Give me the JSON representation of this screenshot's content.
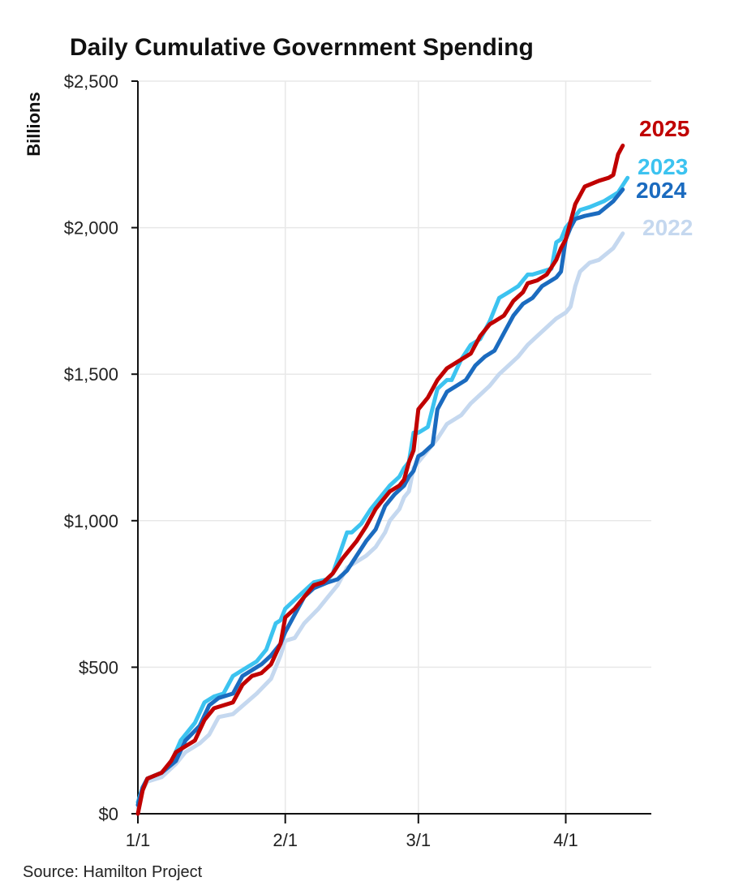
{
  "title": "Daily Cumulative Government Spending",
  "source": "Source: Hamilton Project",
  "chart_data": {
    "type": "line",
    "title": "Daily Cumulative Government Spending",
    "xlabel": "",
    "ylabel": "Billions",
    "xlim": [
      0,
      108
    ],
    "ylim": [
      0,
      2500
    ],
    "x_ticks": [
      {
        "value": 0,
        "label": "1/1"
      },
      {
        "value": 31,
        "label": "2/1"
      },
      {
        "value": 59,
        "label": "3/1"
      },
      {
        "value": 90,
        "label": "4/1"
      }
    ],
    "y_ticks": [
      {
        "value": 0,
        "label": "$0"
      },
      {
        "value": 500,
        "label": "$500"
      },
      {
        "value": 1000,
        "label": "$1,000"
      },
      {
        "value": 1500,
        "label": "$1,500"
      },
      {
        "value": 2000,
        "label": "$2,000"
      },
      {
        "value": 2500,
        "label": "$2,500"
      }
    ],
    "grid": true,
    "series": [
      {
        "name": "2022",
        "color": "#c5d8ef",
        "x": [
          0,
          1,
          2,
          5,
          8,
          10,
          13,
          15,
          17,
          20,
          25,
          28,
          29,
          30,
          31,
          33,
          35,
          38,
          40,
          42,
          44,
          45,
          48,
          50,
          52,
          53,
          55,
          56,
          57,
          58,
          59,
          60,
          63,
          65,
          68,
          70,
          72,
          74,
          76,
          78,
          80,
          82,
          84,
          86,
          88,
          89,
          90,
          91,
          92,
          93,
          95,
          97,
          100,
          102
        ],
        "y": [
          20,
          80,
          110,
          125,
          170,
          210,
          240,
          270,
          330,
          340,
          410,
          460,
          500,
          540,
          590,
          600,
          650,
          700,
          740,
          780,
          840,
          850,
          880,
          910,
          960,
          1000,
          1040,
          1080,
          1100,
          1180,
          1200,
          1220,
          1280,
          1330,
          1360,
          1400,
          1430,
          1460,
          1500,
          1530,
          1560,
          1600,
          1630,
          1660,
          1690,
          1700,
          1710,
          1730,
          1800,
          1850,
          1880,
          1890,
          1930,
          1980
        ]
      },
      {
        "name": "2023",
        "color": "#3cc3f0",
        "x": [
          0,
          1,
          2,
          5,
          7,
          9,
          12,
          14,
          16,
          18,
          20,
          23,
          25,
          27,
          29,
          30,
          31,
          33,
          35,
          37,
          40,
          41,
          44,
          45,
          47,
          49,
          51,
          53,
          55,
          56,
          57,
          58,
          59,
          61,
          63,
          65,
          66,
          68,
          70,
          72,
          74,
          76,
          78,
          80,
          82,
          83,
          85,
          87,
          88,
          89,
          90,
          91,
          93,
          95,
          98,
          101,
          103
        ],
        "y": [
          40,
          90,
          120,
          140,
          175,
          250,
          310,
          380,
          400,
          410,
          470,
          500,
          520,
          560,
          650,
          660,
          700,
          730,
          760,
          790,
          800,
          820,
          960,
          960,
          990,
          1040,
          1080,
          1120,
          1150,
          1180,
          1200,
          1300,
          1300,
          1320,
          1450,
          1480,
          1480,
          1550,
          1600,
          1620,
          1680,
          1760,
          1780,
          1800,
          1840,
          1840,
          1850,
          1860,
          1950,
          1960,
          2000,
          2020,
          2060,
          2070,
          2090,
          2120,
          2170
        ]
      },
      {
        "name": "2024",
        "color": "#1b6bbf",
        "x": [
          0,
          1,
          2,
          5,
          8,
          10,
          13,
          15,
          17,
          20,
          22,
          24,
          26,
          28,
          30,
          31,
          33,
          35,
          37,
          40,
          42,
          44,
          46,
          48,
          50,
          52,
          54,
          56,
          57,
          58,
          59,
          60,
          62,
          63,
          65,
          67,
          69,
          71,
          73,
          75,
          77,
          79,
          81,
          83,
          85,
          87,
          88,
          89,
          90,
          91,
          92,
          94,
          97,
          100,
          102
        ],
        "y": [
          30,
          90,
          120,
          140,
          180,
          250,
          300,
          370,
          395,
          410,
          470,
          490,
          510,
          540,
          580,
          620,
          680,
          740,
          770,
          790,
          800,
          830,
          880,
          930,
          970,
          1050,
          1090,
          1120,
          1150,
          1170,
          1220,
          1230,
          1260,
          1380,
          1440,
          1460,
          1480,
          1530,
          1560,
          1580,
          1640,
          1700,
          1740,
          1760,
          1800,
          1820,
          1830,
          1850,
          1960,
          2000,
          2030,
          2040,
          2050,
          2090,
          2130
        ]
      },
      {
        "name": "2025",
        "color": "#c00000",
        "x": [
          0,
          1,
          2,
          5,
          7,
          8,
          10,
          12,
          14,
          16,
          18,
          20,
          22,
          24,
          26,
          28,
          30,
          31,
          33,
          35,
          37,
          39,
          41,
          43,
          44,
          46,
          48,
          50,
          51,
          53,
          55,
          56,
          57,
          58,
          59,
          61,
          63,
          65,
          67,
          68,
          70,
          72,
          74,
          75,
          77,
          79,
          81,
          82,
          84,
          86,
          88,
          89,
          90,
          92,
          94,
          97,
          99,
          100,
          101,
          102
        ],
        "y": [
          0,
          80,
          120,
          140,
          180,
          210,
          230,
          250,
          320,
          360,
          370,
          380,
          440,
          470,
          480,
          510,
          580,
          670,
          700,
          740,
          780,
          790,
          820,
          870,
          890,
          930,
          980,
          1040,
          1060,
          1100,
          1120,
          1140,
          1200,
          1240,
          1380,
          1420,
          1480,
          1520,
          1540,
          1550,
          1570,
          1630,
          1670,
          1680,
          1700,
          1750,
          1780,
          1810,
          1820,
          1840,
          1890,
          1930,
          1960,
          2080,
          2140,
          2160,
          2170,
          2180,
          2250,
          2280
        ]
      }
    ]
  }
}
